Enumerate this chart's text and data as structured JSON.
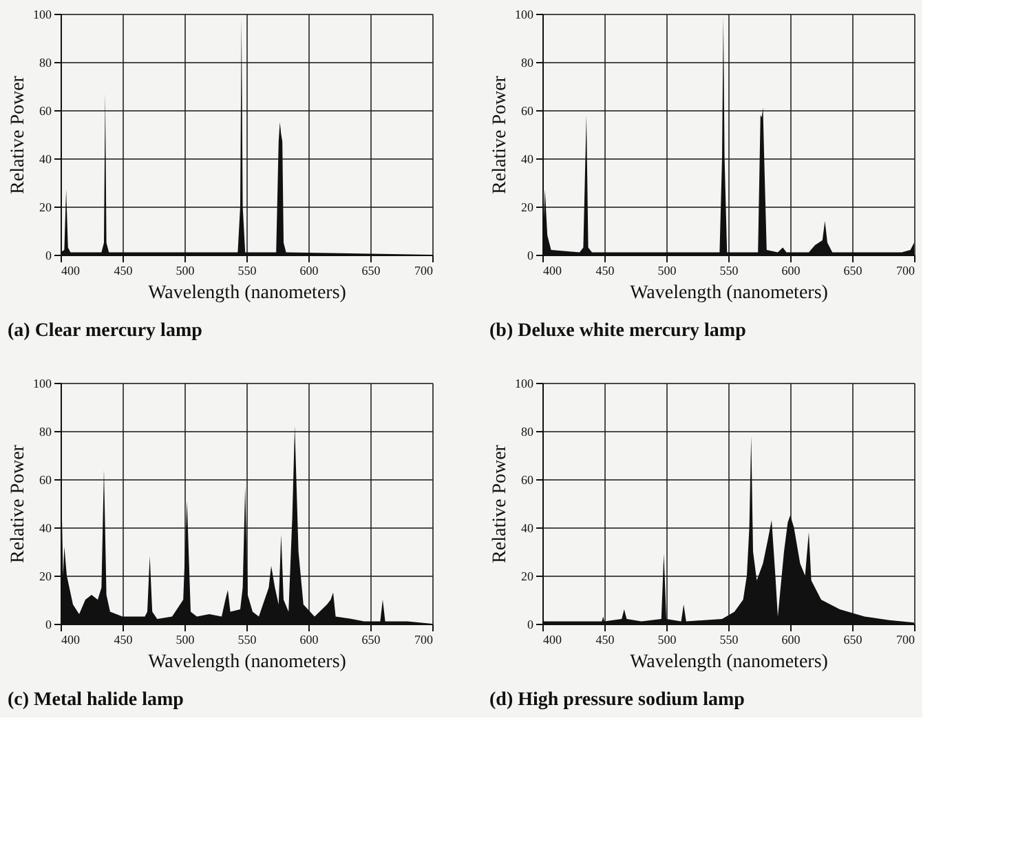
{
  "chart_data": [
    {
      "type": "area",
      "title": "(a) Clear mercury lamp",
      "xlabel": "Wavelength (nanometers)",
      "ylabel": "Relative Power",
      "xlim": [
        400,
        700
      ],
      "ylim": [
        0,
        100
      ],
      "xticks": [
        400,
        450,
        500,
        550,
        600,
        650,
        700
      ],
      "yticks": [
        0,
        20,
        40,
        60,
        80,
        100
      ],
      "grid": true,
      "series": [
        {
          "color": "#111111",
          "x": [
            400,
            403,
            404.5,
            406,
            408,
            433,
            435,
            436,
            437,
            439,
            543,
            545,
            546,
            547,
            549,
            574,
            576,
            577,
            578,
            579,
            580,
            582,
            700
          ],
          "values": [
            1,
            2,
            27,
            3,
            1,
            1,
            5,
            67,
            5,
            1,
            1,
            20,
            98,
            20,
            1,
            1,
            47,
            55,
            50,
            47,
            5,
            1,
            0
          ]
        }
      ]
    },
    {
      "type": "area",
      "title": "(b) Deluxe white mercury lamp",
      "xlabel": "Wavelength (nanometers)",
      "ylabel": "Relative Power",
      "xlim": [
        400,
        700
      ],
      "ylim": [
        0,
        100
      ],
      "xticks": [
        400,
        450,
        500,
        550,
        600,
        650,
        700
      ],
      "yticks": [
        0,
        20,
        40,
        60,
        80,
        100
      ],
      "grid": true,
      "series": [
        {
          "color": "#111111",
          "x": [
            400,
            402,
            404,
            407,
            430,
            433,
            435.5,
            437,
            440,
            543,
            545,
            546,
            547,
            549,
            574,
            576,
            577,
            578,
            579,
            581,
            590,
            594,
            597,
            615,
            620,
            626,
            628,
            630,
            634,
            690,
            697,
            700
          ],
          "values": [
            1,
            27,
            8,
            2,
            1,
            3,
            58,
            3,
            1,
            1,
            40,
            99,
            40,
            1,
            1,
            58,
            57,
            61,
            40,
            2,
            1,
            3,
            1,
            1,
            4,
            6,
            14,
            5,
            1,
            1,
            2,
            5
          ]
        }
      ]
    },
    {
      "type": "area",
      "title": "(c) Metal halide lamp",
      "xlabel": "Wavelength (nanometers)",
      "ylabel": "Relative Power",
      "xlim": [
        400,
        700
      ],
      "ylim": [
        0,
        100
      ],
      "xticks": [
        400,
        450,
        500,
        550,
        600,
        650,
        700
      ],
      "yticks": [
        0,
        20,
        40,
        60,
        80,
        100
      ],
      "grid": true,
      "series": [
        {
          "color": "#111111",
          "x": [
            400,
            401,
            402,
            403,
            405,
            410,
            415,
            420,
            425,
            430,
            433,
            435,
            437,
            440,
            450,
            468,
            470,
            472,
            474,
            478,
            490,
            499,
            502,
            505,
            510,
            520,
            530,
            533,
            535,
            537,
            545,
            547,
            549,
            551,
            555,
            560,
            568,
            570,
            573,
            576,
            578,
            580,
            584,
            587,
            589,
            592,
            596,
            605,
            615,
            618,
            620,
            622,
            635,
            645,
            658,
            660,
            662,
            680,
            700
          ],
          "values": [
            10,
            47,
            20,
            32,
            20,
            8,
            4,
            10,
            12,
            10,
            15,
            64,
            12,
            5,
            3,
            3,
            5,
            28,
            5,
            2,
            3,
            10,
            51,
            5,
            3,
            4,
            3,
            10,
            14,
            5,
            6,
            15,
            57,
            12,
            5,
            3,
            15,
            24,
            15,
            8,
            37,
            10,
            5,
            44,
            82,
            30,
            8,
            3,
            8,
            10,
            13,
            3,
            2,
            1,
            1,
            10,
            1,
            1,
            0
          ]
        }
      ]
    },
    {
      "type": "area",
      "title": "(d) High pressure sodium lamp",
      "xlabel": "Wavelength (nanometers)",
      "ylabel": "Relative Power",
      "xlim": [
        400,
        700
      ],
      "ylim": [
        0,
        100
      ],
      "xticks": [
        400,
        450,
        500,
        550,
        600,
        650,
        700
      ],
      "yticks": [
        0,
        20,
        40,
        60,
        80,
        100
      ],
      "grid": true,
      "series": [
        {
          "color": "#111111",
          "x": [
            400,
            448,
            449,
            450,
            464,
            466,
            468,
            480,
            496,
            498,
            500,
            512,
            514,
            516,
            545,
            555,
            562,
            565,
            567,
            568.5,
            570,
            573,
            578,
            582,
            585,
            588,
            590,
            595,
            598,
            600,
            603,
            608,
            612,
            615,
            617,
            625,
            640,
            660,
            680,
            700
          ],
          "values": [
            1,
            1,
            3,
            1,
            2,
            6,
            2,
            1,
            2,
            29,
            2,
            1,
            8,
            1,
            2,
            5,
            10,
            20,
            40,
            78,
            30,
            18,
            25,
            35,
            43,
            20,
            3,
            30,
            42,
            45,
            40,
            25,
            20,
            38,
            18,
            10,
            6,
            3,
            1.5,
            0.5
          ]
        }
      ]
    }
  ]
}
